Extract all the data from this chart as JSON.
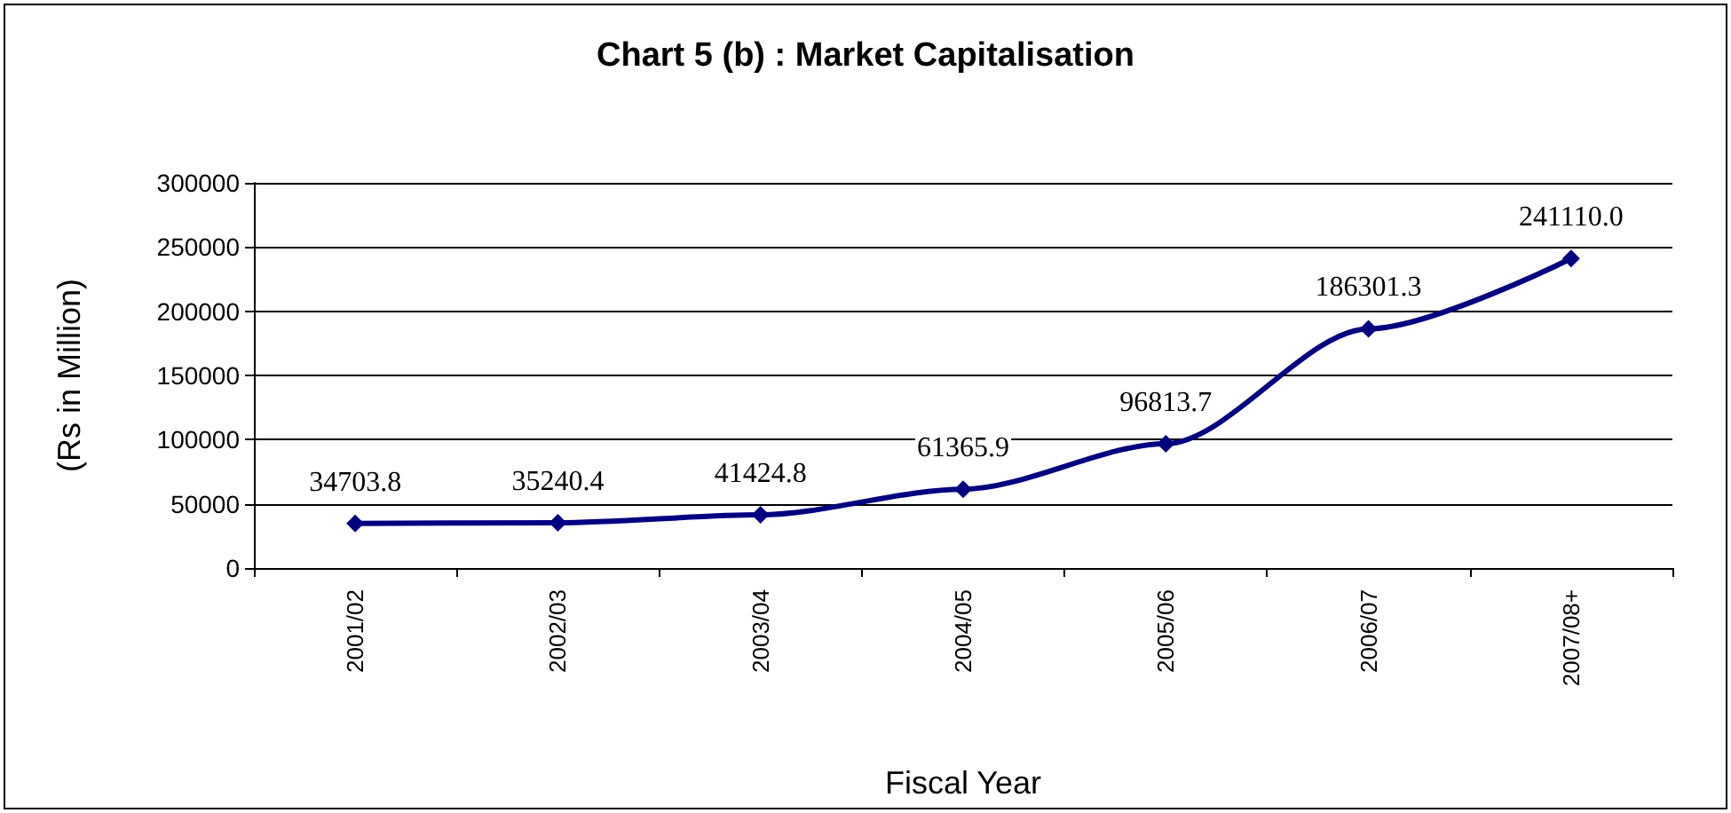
{
  "chart_data": {
    "type": "line",
    "title": "Chart 5 (b) : Market Capitalisation",
    "xlabel": "Fiscal Year",
    "ylabel": "(Rs in Million)",
    "categories": [
      "2001/02",
      "2002/03",
      "2003/04",
      "2004/05",
      "2005/06",
      "2006/07",
      "2007/08+"
    ],
    "series": [
      {
        "color": "#000080",
        "values": [
          34703.8,
          35240.4,
          41424.8,
          61365.9,
          96813.7,
          186301.3,
          241110.0
        ],
        "value_labels": [
          "34703.8",
          "35240.4",
          "41424.8",
          "61365.9",
          "96813.7",
          "186301.3",
          "241110.0"
        ]
      }
    ],
    "ylim": [
      0,
      300000
    ],
    "yticks": [
      0,
      50000,
      100000,
      150000,
      200000,
      250000,
      300000
    ],
    "grid": "y",
    "marker": "diamond",
    "line_style": "solid"
  }
}
